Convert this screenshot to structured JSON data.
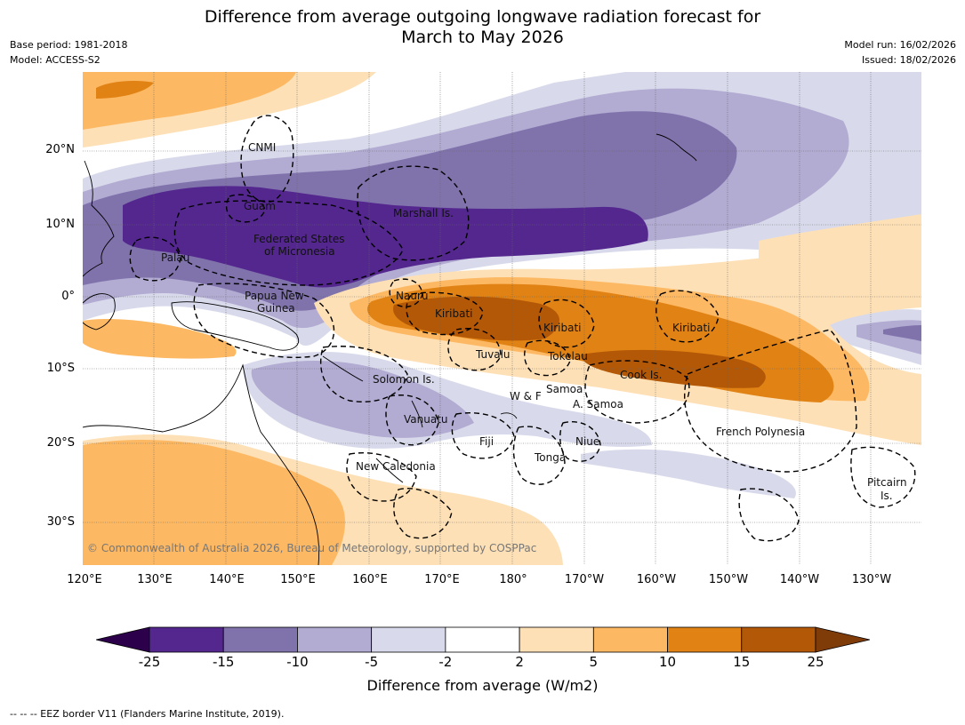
{
  "title_line1": "Difference from average outgoing longwave radiation forecast for",
  "title_line2": "March to May 2026",
  "meta": {
    "base_period": "Base period: 1981-2018",
    "model": "Model: ACCESS-S2",
    "model_run": "Model run: 16/02/2026",
    "issued": "Issued: 18/02/2026"
  },
  "latitude_ticks": [
    "20°N",
    "10°N",
    "0°",
    "10°S",
    "20°S",
    "30°S"
  ],
  "longitude_ticks": [
    "120°E",
    "130°E",
    "140°E",
    "150°E",
    "160°E",
    "170°E",
    "180°",
    "170°W",
    "160°W",
    "150°W",
    "140°W",
    "130°W"
  ],
  "places": {
    "cnmi": "CNMI",
    "guam": "Guam",
    "marshall": "Marshall Is.",
    "fsm1": "Federated States",
    "fsm2": "of Micronesia",
    "palau": "Palau",
    "png1": "Papua New",
    "png2": "Guinea",
    "nauru": "Nauru",
    "kiribati_w": "Kiribati",
    "kiribati_c": "Kiribati",
    "kiribati_e": "Kiribati",
    "tuvalu": "Tuvalu",
    "tokelau": "Tokelau",
    "cook": "Cook Is.",
    "solomon": "Solomon Is.",
    "wf": "W & F",
    "samoa": "Samoa",
    "asamoa": "A. Samoa",
    "vanuatu": "Vanuatu",
    "fiji": "Fiji",
    "niue": "Niue",
    "tonga": "Tonga",
    "newcal": "New Caledonia",
    "frpoly": "French Polynesia",
    "pitcairn1": "Pitcairn",
    "pitcairn2": "Is."
  },
  "copyright": "© Commonwealth of Australia 2026, Bureau of Meteorology, supported by COSPPac",
  "colorbar": {
    "labels": [
      "-25",
      "-15",
      "-10",
      "-5",
      "-2",
      "2",
      "5",
      "10",
      "15",
      "25"
    ],
    "colors": [
      "#54278f",
      "#8073ac",
      "#b2abd2",
      "#d8daeb",
      "#ffffff",
      "#fee0b6",
      "#fdb863",
      "#e08214",
      "#b35806"
    ],
    "under_color": "#2d004b",
    "over_color": "#7f3b08",
    "title": "Difference from average (W/m2)"
  },
  "footer": "--  --  -- EEZ border V11 (Flanders Marine Institute, 2019)."
}
